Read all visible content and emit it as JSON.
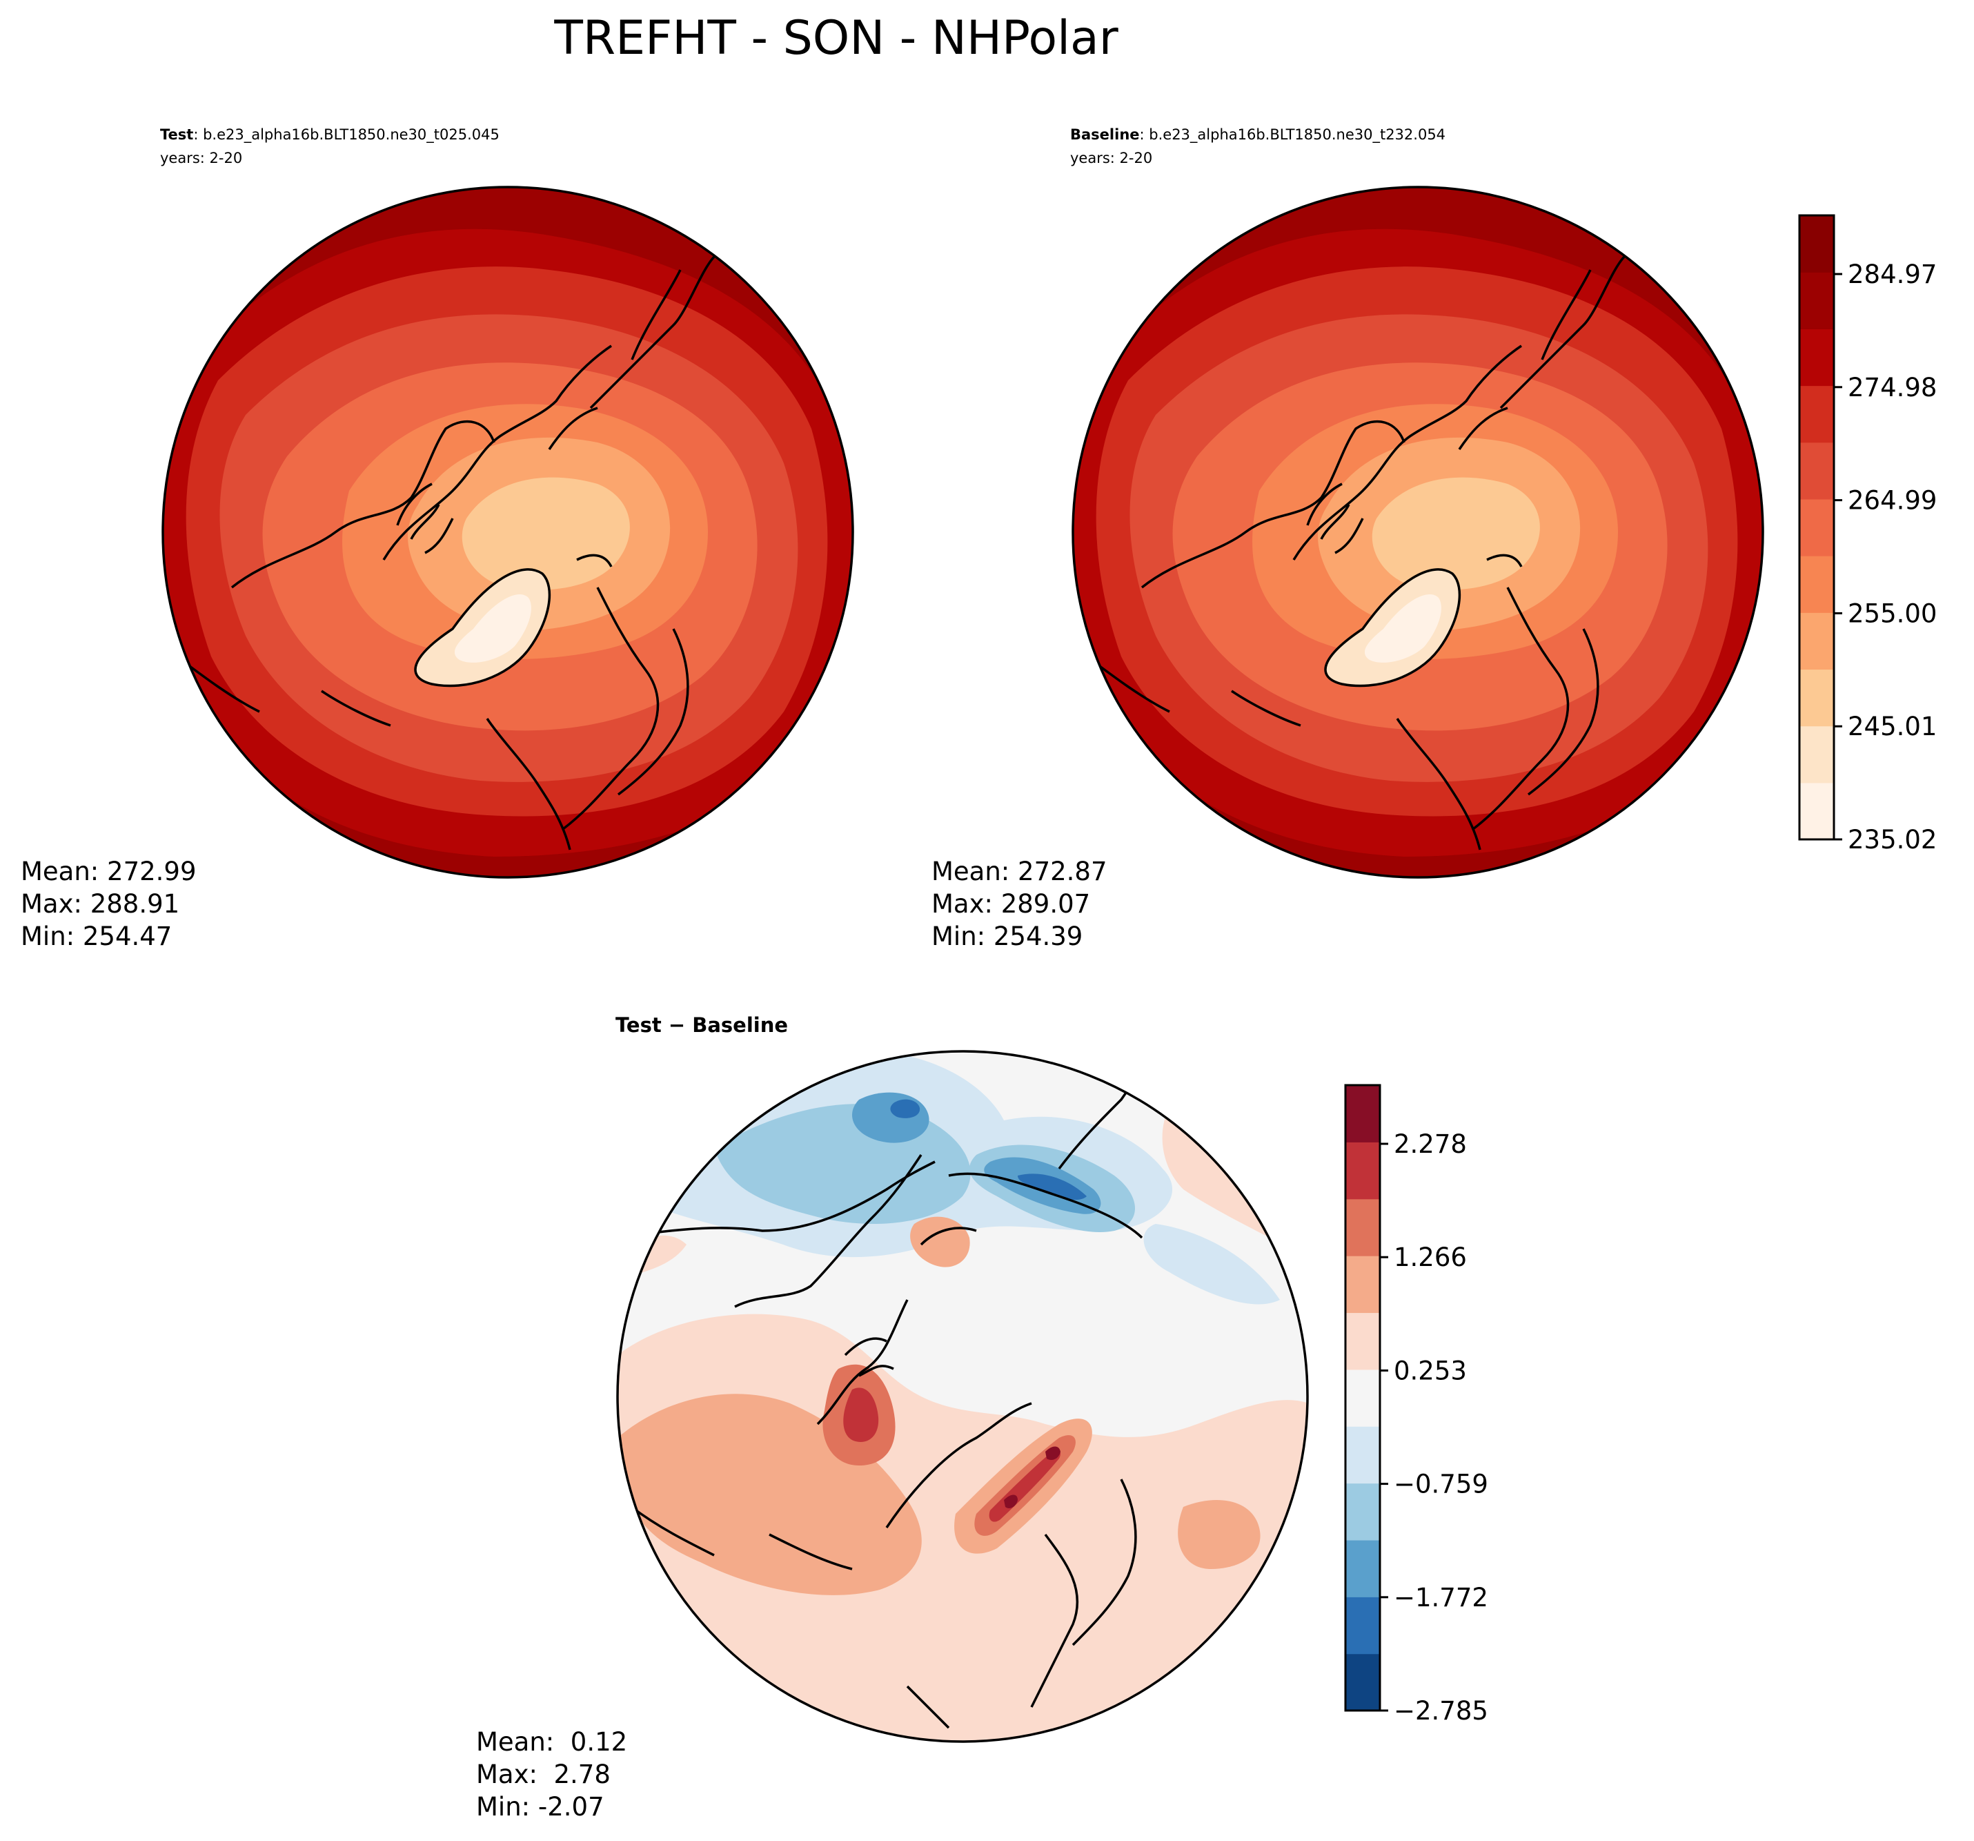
{
  "figure_title": "TREFHT - SON - NHPolar",
  "panels": {
    "test": {
      "label_bold": "Test",
      "label_case": ": b.e23_alpha16b.BLT1850.ne30_t025.045",
      "years": "years: 2-20",
      "stats": {
        "mean": "Mean: 272.99",
        "max": "Max: 288.91",
        "min": "Min: 254.47"
      }
    },
    "baseline": {
      "label_bold": "Baseline",
      "label_case": ": b.e23_alpha16b.BLT1850.ne30_t232.054",
      "years": "years: 2-20",
      "stats": {
        "mean": "Mean: 272.87",
        "max": "Max: 289.07",
        "min": "Min: 254.39"
      }
    },
    "diff": {
      "title": "Test − Baseline",
      "stats": {
        "mean": "Mean:  0.12",
        "max": "Max:  2.78",
        "min": "Min: -2.07"
      }
    }
  },
  "colorbar_abs": {
    "colors": [
      "#fff5eb",
      "#fee6ce",
      "#fdd0a2",
      "#fdae6b",
      "#fd8d3c",
      "#f16913",
      "#e34a33",
      "#d62f20",
      "#b70000",
      "#990000",
      "#7f0000"
    ],
    "display_colors": [
      "#fff2e6",
      "#fde4c8",
      "#fcc993",
      "#fba66e",
      "#f78552",
      "#ef6a47",
      "#e04c36",
      "#d22d1e",
      "#b50404",
      "#9c0101",
      "#880000"
    ],
    "ticks": [
      "284.97",
      "274.98",
      "264.99",
      "255.00",
      "245.01",
      "235.02"
    ]
  },
  "colorbar_diff": {
    "display_colors": [
      "#0e4482",
      "#2a6fb4",
      "#5aa0cc",
      "#9ccbe2",
      "#d4e6f3",
      "#f5f5f5",
      "#fbdbcd",
      "#f4ab8a",
      "#e0735b",
      "#c13238",
      "#870e26"
    ],
    "ticks": [
      "2.278",
      "1.266",
      "0.253",
      "−0.759",
      "−1.772",
      "−2.785"
    ]
  }
}
